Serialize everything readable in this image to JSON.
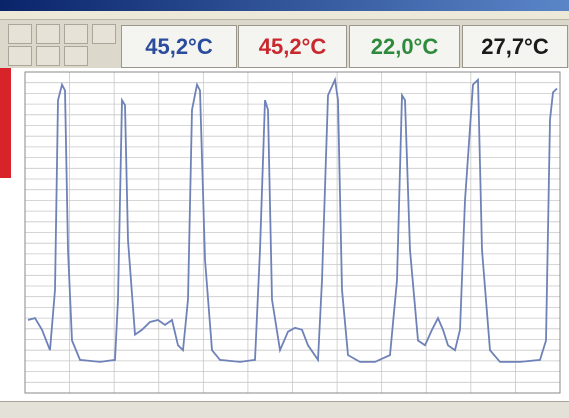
{
  "readouts": [
    {
      "value": "45,2°C",
      "color": "#2b4c9c"
    },
    {
      "value": "45,2°C",
      "color": "#c8282e"
    },
    {
      "value": "22,0°C",
      "color": "#2e8a3c"
    },
    {
      "value": "27,7°C",
      "color": "#1a1a1a"
    }
  ],
  "chart_data": {
    "type": "line",
    "xlim": [
      25,
      560
    ],
    "ylim": [
      24,
      57
    ],
    "series": [
      {
        "color": "#6f82b8",
        "x": [
          28,
          35,
          42,
          50,
          55,
          58,
          62,
          65,
          68,
          72,
          80,
          100,
          115,
          118,
          122,
          125,
          128,
          135,
          142,
          150,
          158,
          165,
          172,
          178,
          183,
          188,
          192,
          197,
          200,
          205,
          212,
          220,
          240,
          255,
          260,
          265,
          268,
          272,
          280,
          288,
          295,
          302,
          308,
          318,
          322,
          328,
          335,
          338,
          342,
          348,
          360,
          375,
          390,
          397,
          402,
          405,
          410,
          418,
          425,
          432,
          438,
          443,
          448,
          455,
          460,
          465,
          473,
          478,
          482,
          490,
          500,
          520,
          540,
          546,
          550,
          553,
          557
        ],
        "values": [
          31.5,
          31.7,
          30.5,
          28.4,
          34.6,
          54.1,
          55.7,
          55.1,
          38.7,
          29.4,
          27.4,
          27.2,
          27.4,
          33.6,
          54.1,
          53.6,
          39.7,
          30.0,
          30.5,
          31.3,
          31.5,
          31.0,
          31.5,
          28.9,
          28.4,
          33.6,
          53.1,
          55.7,
          55.1,
          37.7,
          28.4,
          27.4,
          27.2,
          27.4,
          38.7,
          54.1,
          53.1,
          33.6,
          28.4,
          30.3,
          30.7,
          30.5,
          28.9,
          27.4,
          35.6,
          54.6,
          56.2,
          54.1,
          34.6,
          27.9,
          27.2,
          27.2,
          27.9,
          35.6,
          54.6,
          54.1,
          38.7,
          29.4,
          28.9,
          30.5,
          31.7,
          30.5,
          28.9,
          28.4,
          30.5,
          43.8,
          55.7,
          56.2,
          38.7,
          28.4,
          27.2,
          27.2,
          27.4,
          29.4,
          52.1,
          54.9,
          55.3
        ]
      }
    ]
  }
}
